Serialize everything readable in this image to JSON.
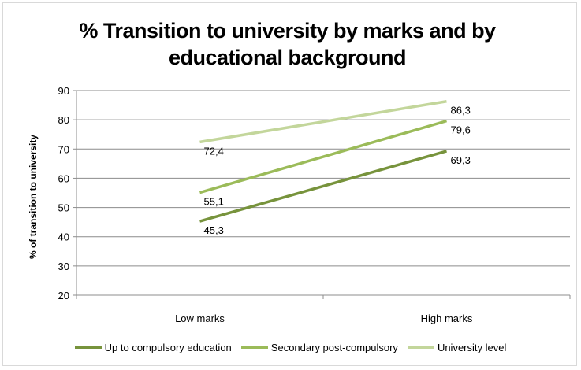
{
  "chart_data": {
    "type": "line",
    "title_lines": [
      "% Transition to university by marks and by",
      "educational background"
    ],
    "xlabel": "",
    "ylabel": "% of transition to university",
    "categories": [
      "Low marks",
      "High marks"
    ],
    "ylim": [
      20,
      90
    ],
    "yticks": [
      20,
      30,
      40,
      50,
      60,
      70,
      80,
      90
    ],
    "grid": true,
    "legend_position": "bottom",
    "series": [
      {
        "name": "Up to compulsory education",
        "values": [
          45.3,
          69.3
        ],
        "labels": [
          "45,3",
          "69,3"
        ],
        "color": "#77933c"
      },
      {
        "name": "Secondary post-compulsory",
        "values": [
          55.1,
          79.6
        ],
        "labels": [
          "55,1",
          "79,6"
        ],
        "color": "#9bbb59"
      },
      {
        "name": "University level",
        "values": [
          72.4,
          86.3
        ],
        "labels": [
          "72,4",
          "86,3"
        ],
        "color": "#c3d69b"
      }
    ]
  }
}
